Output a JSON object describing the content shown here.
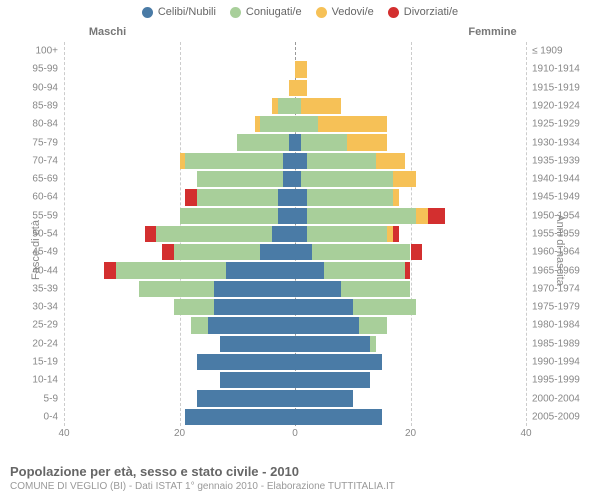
{
  "legend": [
    {
      "label": "Celibi/Nubili",
      "color": "#4a7ba6"
    },
    {
      "label": "Coniugati/e",
      "color": "#a8cf9a"
    },
    {
      "label": "Vedovi/e",
      "color": "#f6c157"
    },
    {
      "label": "Divorziati/e",
      "color": "#d32f2f"
    }
  ],
  "headers": {
    "male": "Maschi",
    "female": "Femmine"
  },
  "axis": {
    "left_title": "Fasce di età",
    "right_title": "Anni di nascita",
    "xmax": 40,
    "xticks": [
      40,
      20,
      0,
      20,
      40
    ]
  },
  "title": "Popolazione per età, sesso e stato civile - 2010",
  "subtitle": "COMUNE DI VEGLIO (BI) - Dati ISTAT 1° gennaio 2010 - Elaborazione TUTTITALIA.IT",
  "colors": {
    "celibi": "#4a7ba6",
    "coniugati": "#a8cf9a",
    "vedovi": "#f6c157",
    "divorziati": "#d32f2f",
    "grid": "#cccccc",
    "center": "#999999"
  },
  "rows": [
    {
      "age": "100+",
      "birth": "≤ 1909",
      "m": [
        0,
        0,
        0,
        0
      ],
      "f": [
        0,
        0,
        0,
        0
      ]
    },
    {
      "age": "95-99",
      "birth": "1910-1914",
      "m": [
        0,
        0,
        0,
        0
      ],
      "f": [
        0,
        0,
        2,
        0
      ]
    },
    {
      "age": "90-94",
      "birth": "1915-1919",
      "m": [
        0,
        0,
        1,
        0
      ],
      "f": [
        0,
        0,
        2,
        0
      ]
    },
    {
      "age": "85-89",
      "birth": "1920-1924",
      "m": [
        0,
        3,
        1,
        0
      ],
      "f": [
        0,
        1,
        7,
        0
      ]
    },
    {
      "age": "80-84",
      "birth": "1925-1929",
      "m": [
        0,
        6,
        1,
        0
      ],
      "f": [
        0,
        4,
        12,
        0
      ]
    },
    {
      "age": "75-79",
      "birth": "1930-1934",
      "m": [
        1,
        9,
        0,
        0
      ],
      "f": [
        1,
        8,
        7,
        0
      ]
    },
    {
      "age": "70-74",
      "birth": "1935-1939",
      "m": [
        2,
        17,
        1,
        0
      ],
      "f": [
        2,
        12,
        5,
        0
      ]
    },
    {
      "age": "65-69",
      "birth": "1940-1944",
      "m": [
        2,
        15,
        0,
        0
      ],
      "f": [
        1,
        16,
        4,
        0
      ]
    },
    {
      "age": "60-64",
      "birth": "1945-1949",
      "m": [
        3,
        14,
        0,
        2
      ],
      "f": [
        2,
        15,
        1,
        0
      ]
    },
    {
      "age": "55-59",
      "birth": "1950-1954",
      "m": [
        3,
        17,
        0,
        0
      ],
      "f": [
        2,
        19,
        2,
        3
      ]
    },
    {
      "age": "50-54",
      "birth": "1955-1959",
      "m": [
        4,
        20,
        0,
        2
      ],
      "f": [
        2,
        14,
        1,
        1
      ]
    },
    {
      "age": "45-49",
      "birth": "1960-1964",
      "m": [
        6,
        15,
        0,
        2
      ],
      "f": [
        3,
        17,
        0,
        2
      ]
    },
    {
      "age": "40-44",
      "birth": "1965-1969",
      "m": [
        12,
        19,
        0,
        2
      ],
      "f": [
        5,
        14,
        0,
        1
      ]
    },
    {
      "age": "35-39",
      "birth": "1970-1974",
      "m": [
        14,
        13,
        0,
        0
      ],
      "f": [
        8,
        12,
        0,
        0
      ]
    },
    {
      "age": "30-34",
      "birth": "1975-1979",
      "m": [
        14,
        7,
        0,
        0
      ],
      "f": [
        10,
        11,
        0,
        0
      ]
    },
    {
      "age": "25-29",
      "birth": "1980-1984",
      "m": [
        15,
        3,
        0,
        0
      ],
      "f": [
        11,
        5,
        0,
        0
      ]
    },
    {
      "age": "20-24",
      "birth": "1985-1989",
      "m": [
        13,
        0,
        0,
        0
      ],
      "f": [
        13,
        1,
        0,
        0
      ]
    },
    {
      "age": "15-19",
      "birth": "1990-1994",
      "m": [
        17,
        0,
        0,
        0
      ],
      "f": [
        15,
        0,
        0,
        0
      ]
    },
    {
      "age": "10-14",
      "birth": "1995-1999",
      "m": [
        13,
        0,
        0,
        0
      ],
      "f": [
        13,
        0,
        0,
        0
      ]
    },
    {
      "age": "5-9",
      "birth": "2000-2004",
      "m": [
        17,
        0,
        0,
        0
      ],
      "f": [
        10,
        0,
        0,
        0
      ]
    },
    {
      "age": "0-4",
      "birth": "2005-2009",
      "m": [
        19,
        0,
        0,
        0
      ],
      "f": [
        15,
        0,
        0,
        0
      ]
    }
  ]
}
